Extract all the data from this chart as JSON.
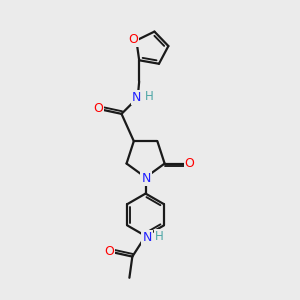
{
  "bg": "#ebebeb",
  "lc": "#1a1a1a",
  "nc": "#2020ff",
  "oc": "#ff0000",
  "hc": "#4da6a6",
  "lw": 1.6,
  "figsize": [
    3.0,
    3.0
  ],
  "dpi": 100,
  "xlim": [
    0,
    10
  ],
  "ylim": [
    0,
    10
  ]
}
